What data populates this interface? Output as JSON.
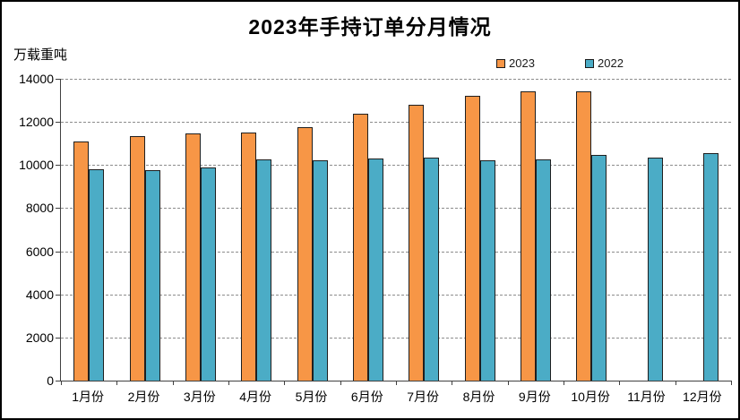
{
  "title": "2023年手持订单分月情况",
  "y_axis_unit_label": "万载重吨",
  "legend": {
    "items": [
      {
        "label": "2023",
        "color": "#F79646"
      },
      {
        "label": "2022",
        "color": "#4BACC6"
      }
    ]
  },
  "colors": {
    "series_2023": "#F79646",
    "series_2022": "#4BACC6",
    "bar_border": "#1f1f1f",
    "gridline": "#8c8c8c",
    "axis": "#404040",
    "background": "#ffffff",
    "outer_border": "#000000"
  },
  "chart_data": {
    "type": "bar",
    "title": "2023年手持订单分月情况",
    "xlabel": "",
    "ylabel": "万载重吨",
    "categories": [
      "1月份",
      "2月份",
      "3月份",
      "4月份",
      "5月份",
      "6月份",
      "7月份",
      "8月份",
      "9月份",
      "10月份",
      "11月份",
      "12月份"
    ],
    "series": [
      {
        "name": "2023",
        "color": "#F79646",
        "values": [
          11100,
          11350,
          11450,
          11500,
          11750,
          12400,
          12800,
          13200,
          13400,
          13400,
          null,
          null
        ]
      },
      {
        "name": "2022",
        "color": "#4BACC6",
        "values": [
          9800,
          9780,
          9900,
          10250,
          10200,
          10300,
          10350,
          10200,
          10250,
          10450,
          10350,
          10550
        ]
      }
    ],
    "ylim": [
      0,
      14000
    ],
    "ytick_step": 2000,
    "ytick_labels": [
      "0",
      "2000",
      "4000",
      "6000",
      "8000",
      "10000",
      "12000",
      "14000"
    ],
    "grid": "horizontal-dashed",
    "legend_position": "top-right"
  }
}
